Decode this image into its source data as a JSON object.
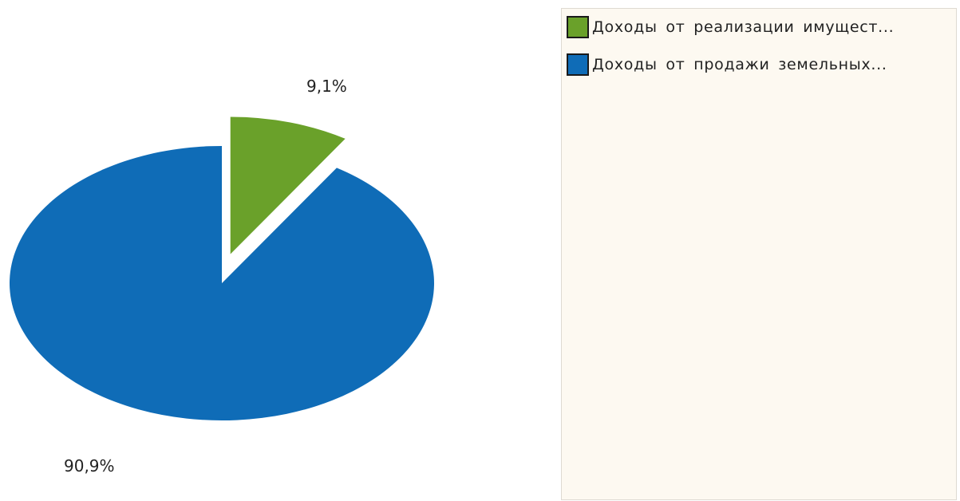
{
  "chart_data": {
    "type": "pie",
    "three_d": true,
    "legend_placement": "right",
    "categories": [
      "Доходы от реализации имущест...",
      "Доходы от продажи земельных..."
    ],
    "values": [
      9.1,
      90.9
    ],
    "value_labels": [
      "9,1%",
      "90,9%"
    ],
    "exploded": [
      true,
      false
    ],
    "colors": [
      "#6aa12a",
      "#0f6cb7"
    ],
    "side_colors": [
      "#3f6b15",
      "#0a4d84"
    ]
  }
}
